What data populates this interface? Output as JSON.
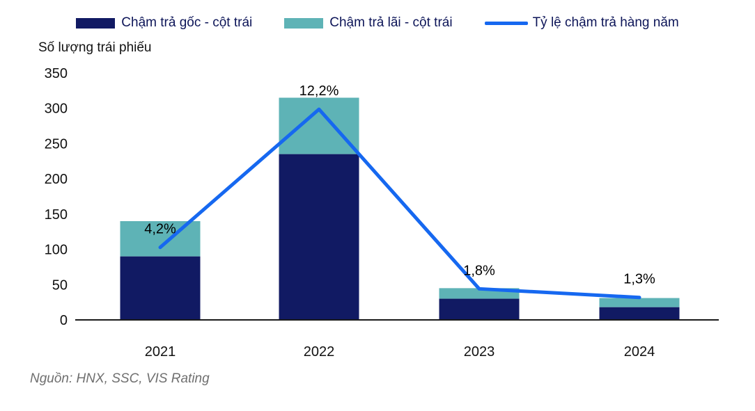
{
  "source": "Nguồn: HNX, SSC, VIS Rating",
  "colors": {
    "principal_bar": "#111a63",
    "interest_bar": "#5eb3b6",
    "rate_line": "#1668f0",
    "axis": "#1a1a1a",
    "tick_text": "#111111",
    "data_label_text": "#000000",
    "legend_text": "#0d1558",
    "source_text": "#6f6f6f"
  },
  "chart_data": {
    "type": "bar",
    "subtype": "stacked-bars-with-line-overlay",
    "title": "",
    "ylabel": "Số lượng trái phiếu",
    "xlabel": "",
    "categories": [
      "2021",
      "2022",
      "2023",
      "2024"
    ],
    "series": [
      {
        "name": "Chậm trả gốc - cột trái",
        "type": "bar",
        "color": "#111a63",
        "values": [
          90,
          235,
          30,
          18
        ]
      },
      {
        "name": "Chậm trả lãi - cột trái",
        "type": "bar",
        "color": "#5eb3b6",
        "values": [
          50,
          80,
          15,
          13
        ]
      },
      {
        "name": "Tỷ lệ chậm trả hàng năm",
        "type": "line",
        "color": "#1668f0",
        "values_pct": [
          4.2,
          12.2,
          1.8,
          1.3
        ],
        "point_labels": [
          "4,2%",
          "12,2%",
          "1,8%",
          "1,3%"
        ]
      }
    ],
    "bar_totals": [
      140,
      315,
      45,
      31
    ],
    "ylim": [
      0,
      350
    ],
    "yticks": [
      0,
      50,
      100,
      150,
      200,
      250,
      300,
      350
    ],
    "line_axis_max_pct": 14.3,
    "grid": false,
    "legend_position": "top"
  }
}
